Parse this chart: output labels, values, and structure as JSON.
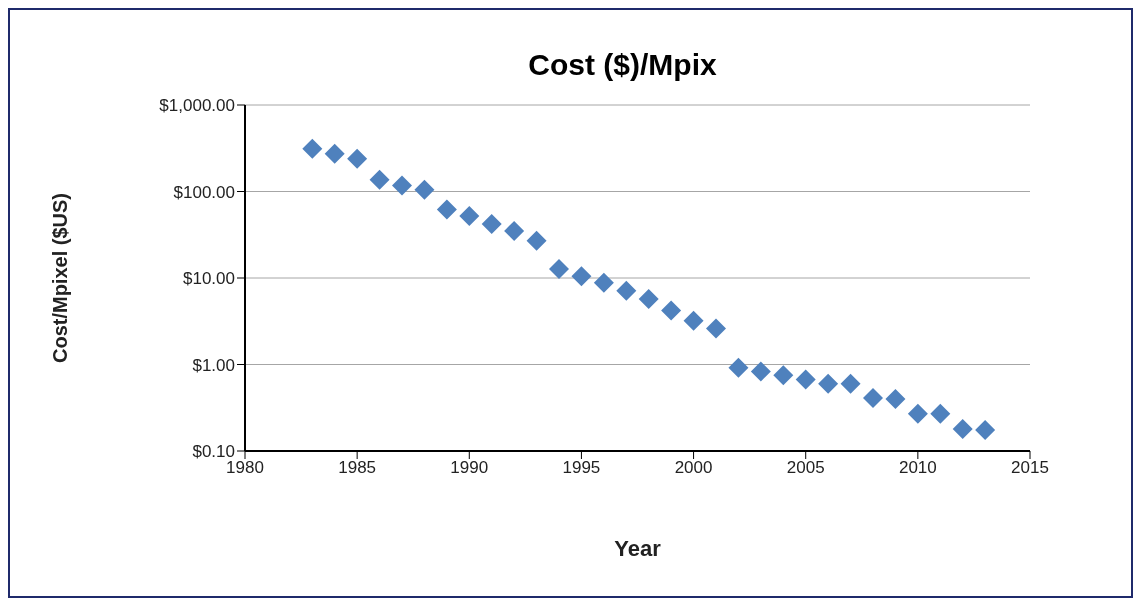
{
  "chart_data": {
    "type": "scatter",
    "title": "Cost ($)/Mpix",
    "xlabel": "Year",
    "ylabel": "Cost/Mpixel ($US)",
    "x": [
      1983,
      1984,
      1985,
      1986,
      1987,
      1988,
      1989,
      1990,
      1991,
      1992,
      1993,
      1994,
      1995,
      1996,
      1997,
      1998,
      1999,
      2000,
      2001,
      2002,
      2003,
      2004,
      2005,
      2006,
      2007,
      2008,
      2009,
      2010,
      2011,
      2012,
      2013
    ],
    "series": [
      {
        "color": "#4f81bd",
        "values": [
          312,
          274,
          239,
          137,
          117,
          105,
          62,
          52,
          42,
          35,
          27,
          12.7,
          10.5,
          8.8,
          7.1,
          5.7,
          4.2,
          3.2,
          2.6,
          0.92,
          0.83,
          0.75,
          0.67,
          0.6,
          0.6,
          0.41,
          0.4,
          0.27,
          0.27,
          0.18,
          0.175
        ]
      }
    ],
    "xlim": [
      1980,
      2015
    ],
    "xticks": [
      1980,
      1985,
      1990,
      1995,
      2000,
      2005,
      2010,
      2015
    ],
    "ylim": [
      0.1,
      1000
    ],
    "yticks": [
      {
        "value": 0.1,
        "label": "$0.10"
      },
      {
        "value": 1,
        "label": "$1.00"
      },
      {
        "value": 10,
        "label": "$10.00"
      },
      {
        "value": 100,
        "label": "$100.00"
      },
      {
        "value": 1000,
        "label": "$1,000.00"
      }
    ],
    "log": "y",
    "grid": "y",
    "marker": "diamond"
  }
}
